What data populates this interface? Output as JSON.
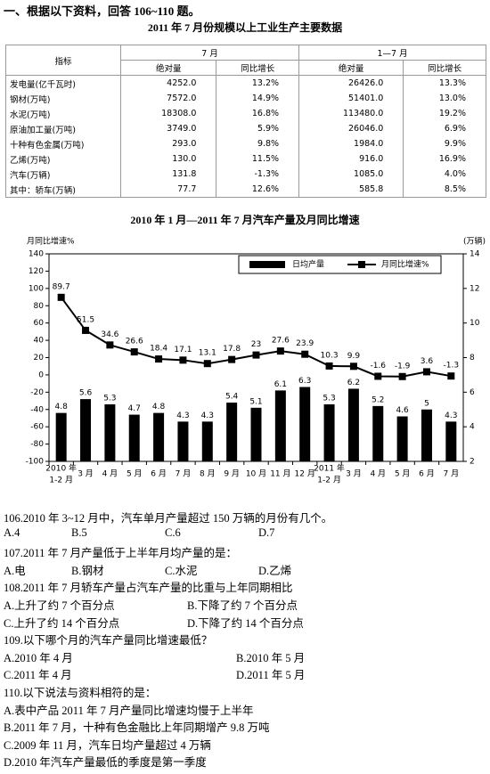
{
  "intro": "一、根据以下资料，回答 106~110 题。",
  "table": {
    "title": "2011 年 7 月份规模以上工业生产主要数据",
    "indicator": "指标",
    "groups": [
      "7 月",
      "1—7 月"
    ],
    "subheaders": [
      "绝对量",
      "同比增长",
      "绝对量",
      "同比增长"
    ],
    "rows": [
      [
        "发电量(亿千瓦时)",
        "4252.0",
        "13.2%",
        "26426.0",
        "13.3%"
      ],
      [
        "钢材(万吨)",
        "7572.0",
        "14.9%",
        "51401.0",
        "13.0%"
      ],
      [
        "水泥(万吨)",
        "18308.0",
        "16.8%",
        "113480.0",
        "19.2%"
      ],
      [
        "原油加工量(万吨)",
        "3749.0",
        "5.9%",
        "26046.0",
        "6.9%"
      ],
      [
        "十种有色金属(万吨)",
        "293.0",
        "9.8%",
        "1984.0",
        "9.9%"
      ],
      [
        "乙烯(万吨)",
        "130.0",
        "11.5%",
        "916.0",
        "16.9%"
      ],
      [
        "汽车(万辆)",
        "131.8",
        "-1.3%",
        "1085.0",
        "4.0%"
      ],
      [
        "其中：轿车(万辆)",
        "77.7",
        "12.6%",
        "585.8",
        "8.5%"
      ]
    ]
  },
  "chart_data": {
    "type": "combo",
    "title": "2010 年 1 月—2011 年 7 月汽车产量及月同比增速",
    "y_label": "月同比增速%",
    "y2_label": "(万辆)",
    "year_labels": [
      "2010 年",
      "2011 年"
    ],
    "categories": [
      "1-2 月",
      "3 月",
      "4 月",
      "5 月",
      "6 月",
      "7 月",
      "8 月",
      "9 月",
      "10 月",
      "11 月",
      "12 月",
      "1-2 月",
      "3 月",
      "4 月",
      "5 月",
      "6 月",
      "7 月"
    ],
    "series": [
      {
        "name": "日均产量",
        "color": "#000000",
        "kind": "bar",
        "axis": "y2",
        "values": [
          4.8,
          5.6,
          5.3,
          4.7,
          4.8,
          4.3,
          4.3,
          5.4,
          5.1,
          6.1,
          6.3,
          5.3,
          6.2,
          5.2,
          4.6,
          5,
          4.3
        ]
      },
      {
        "name": "月同比增速%",
        "color": "#000000",
        "kind": "line",
        "values": [
          89.7,
          51.5,
          34.6,
          26.6,
          18.4,
          17.1,
          13.1,
          17.8,
          23,
          27.6,
          23.9,
          10.3,
          9.9,
          -1.6,
          -1.9,
          3.6,
          -1.3
        ]
      }
    ],
    "ylim": [
      -100,
      140
    ],
    "yticks": [
      -100,
      -80,
      -60,
      -40,
      -20,
      0,
      20,
      40,
      60,
      80,
      100,
      120,
      140
    ],
    "y2lim": [
      2,
      14
    ],
    "y2ticks": [
      2,
      4,
      6,
      8,
      10,
      12,
      14
    ],
    "grid": false,
    "legend": "top-right"
  },
  "questions": [
    {
      "stem": "106.2010 年 3~12 月中，汽车单月产量超过 150 万辆的月份有几个。",
      "options": [
        "A.4",
        "B.5",
        "C.6",
        "D.7"
      ]
    },
    {
      "stem": "107.2011 年 7 月产量低于上半年月均产量的是：",
      "options": [
        "A.电",
        "B.钢材",
        "C.水泥",
        "D.乙烯"
      ]
    },
    {
      "stem": "108.2011 年 7 月轿车产量占汽车产量的比重与上年同期相比",
      "options": [
        "A.上升了约 7 个百分点",
        "B.下降了约 7 个百分点",
        "C.上升了约 14 个百分点",
        "D.下降了约 14 个百分点"
      ]
    },
    {
      "stem": "109.以下哪个月的汽车产量同比增速最低？",
      "options": [
        "A.2010 年 4 月",
        "B.2010 年 5 月",
        "C.2011 年 4 月",
        "D.2011 年 5 月"
      ]
    },
    {
      "stem": "110.以下说法与资料相符的是：",
      "options": [
        "A.表中产品 2011 年 7 月产量同比增速均慢于上半年",
        "B.2011 年 7 月，十种有色金融比上年同期增产 9.8 万吨",
        "C.2009 年 11 月，汽车日均产量超过 4 万辆",
        "D.2010 年汽车产量最低的季度是第一季度"
      ]
    }
  ]
}
